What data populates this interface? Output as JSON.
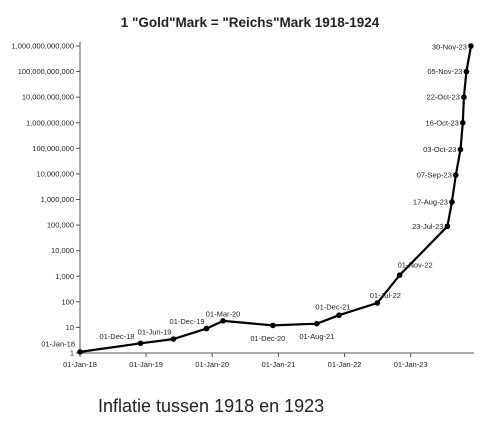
{
  "chart_data": {
    "type": "line",
    "title": "1 \"Gold\"Mark = \"Reichs\"Mark 1918-1924",
    "xlabel": "",
    "ylabel": "",
    "y_scale": "log",
    "ylim": [
      1,
      1000000000000
    ],
    "xlim": [
      "1918-01-01",
      "1923-12-31"
    ],
    "grid": false,
    "legend": "none",
    "line_color": "#000000",
    "y_ticks": [
      "1",
      "10",
      "100",
      "1,000",
      "10,000",
      "100,000",
      "1,000,000",
      "10,000,000",
      "100,000,000",
      "1,000,000,000",
      "10,000,000,000",
      "100,000,000,000",
      "1,000,000,000,000"
    ],
    "y_tick_values": [
      1,
      10,
      100,
      1000,
      10000,
      100000,
      1000000,
      10000000,
      100000000,
      1000000000,
      10000000000,
      100000000000,
      1000000000000
    ],
    "x_ticks": [
      "01-Jan-18",
      "01-Jan-19",
      "01-Jan-20",
      "01-Jan-21",
      "01-Jan-22",
      "01-Jan-23"
    ],
    "x_tick_dates": [
      "1918-01-01",
      "1919-01-01",
      "1920-01-01",
      "1921-01-01",
      "1922-01-01",
      "1923-01-01"
    ],
    "points": [
      {
        "date": "1918-01-01",
        "value": 1.1,
        "label": "01-Jan-18"
      },
      {
        "date": "1918-12-01",
        "value": 2.4,
        "label": "01-Dec-18"
      },
      {
        "date": "1919-06-01",
        "value": 3.5,
        "label": "01-Jun-19"
      },
      {
        "date": "1919-12-01",
        "value": 9,
        "label": "01-Dec-19"
      },
      {
        "date": "1920-03-01",
        "value": 18,
        "label": "01-Mar-20"
      },
      {
        "date": "1920-12-01",
        "value": 12,
        "label": "01-Dec-20"
      },
      {
        "date": "1921-08-01",
        "value": 14,
        "label": "01-Aug-21"
      },
      {
        "date": "1921-12-01",
        "value": 30,
        "label": "01-Dec-21"
      },
      {
        "date": "1922-07-01",
        "value": 90,
        "label": "01-Jul-22"
      },
      {
        "date": "1922-11-01",
        "value": 1100,
        "label": "01-Nov-22"
      },
      {
        "date": "1923-07-23",
        "value": 90000,
        "label": "23-Jul-23"
      },
      {
        "date": "1923-08-17",
        "value": 800000,
        "label": "17-Aug-23"
      },
      {
        "date": "1923-09-07",
        "value": 9000000,
        "label": "07-Sep-23"
      },
      {
        "date": "1923-10-03",
        "value": 90000000,
        "label": "03-Oct-23"
      },
      {
        "date": "1923-10-16",
        "value": 1000000000,
        "label": "16-Oct-23"
      },
      {
        "date": "1923-10-22",
        "value": 10000000000,
        "label": "22-Oct-23"
      },
      {
        "date": "1923-11-05",
        "value": 100000000000,
        "label": "05-Nov-23"
      },
      {
        "date": "1923-11-30",
        "value": 1000000000000,
        "label": "30-Nov-23"
      }
    ]
  },
  "caption": "Inflatie tussen 1918 en 1923"
}
